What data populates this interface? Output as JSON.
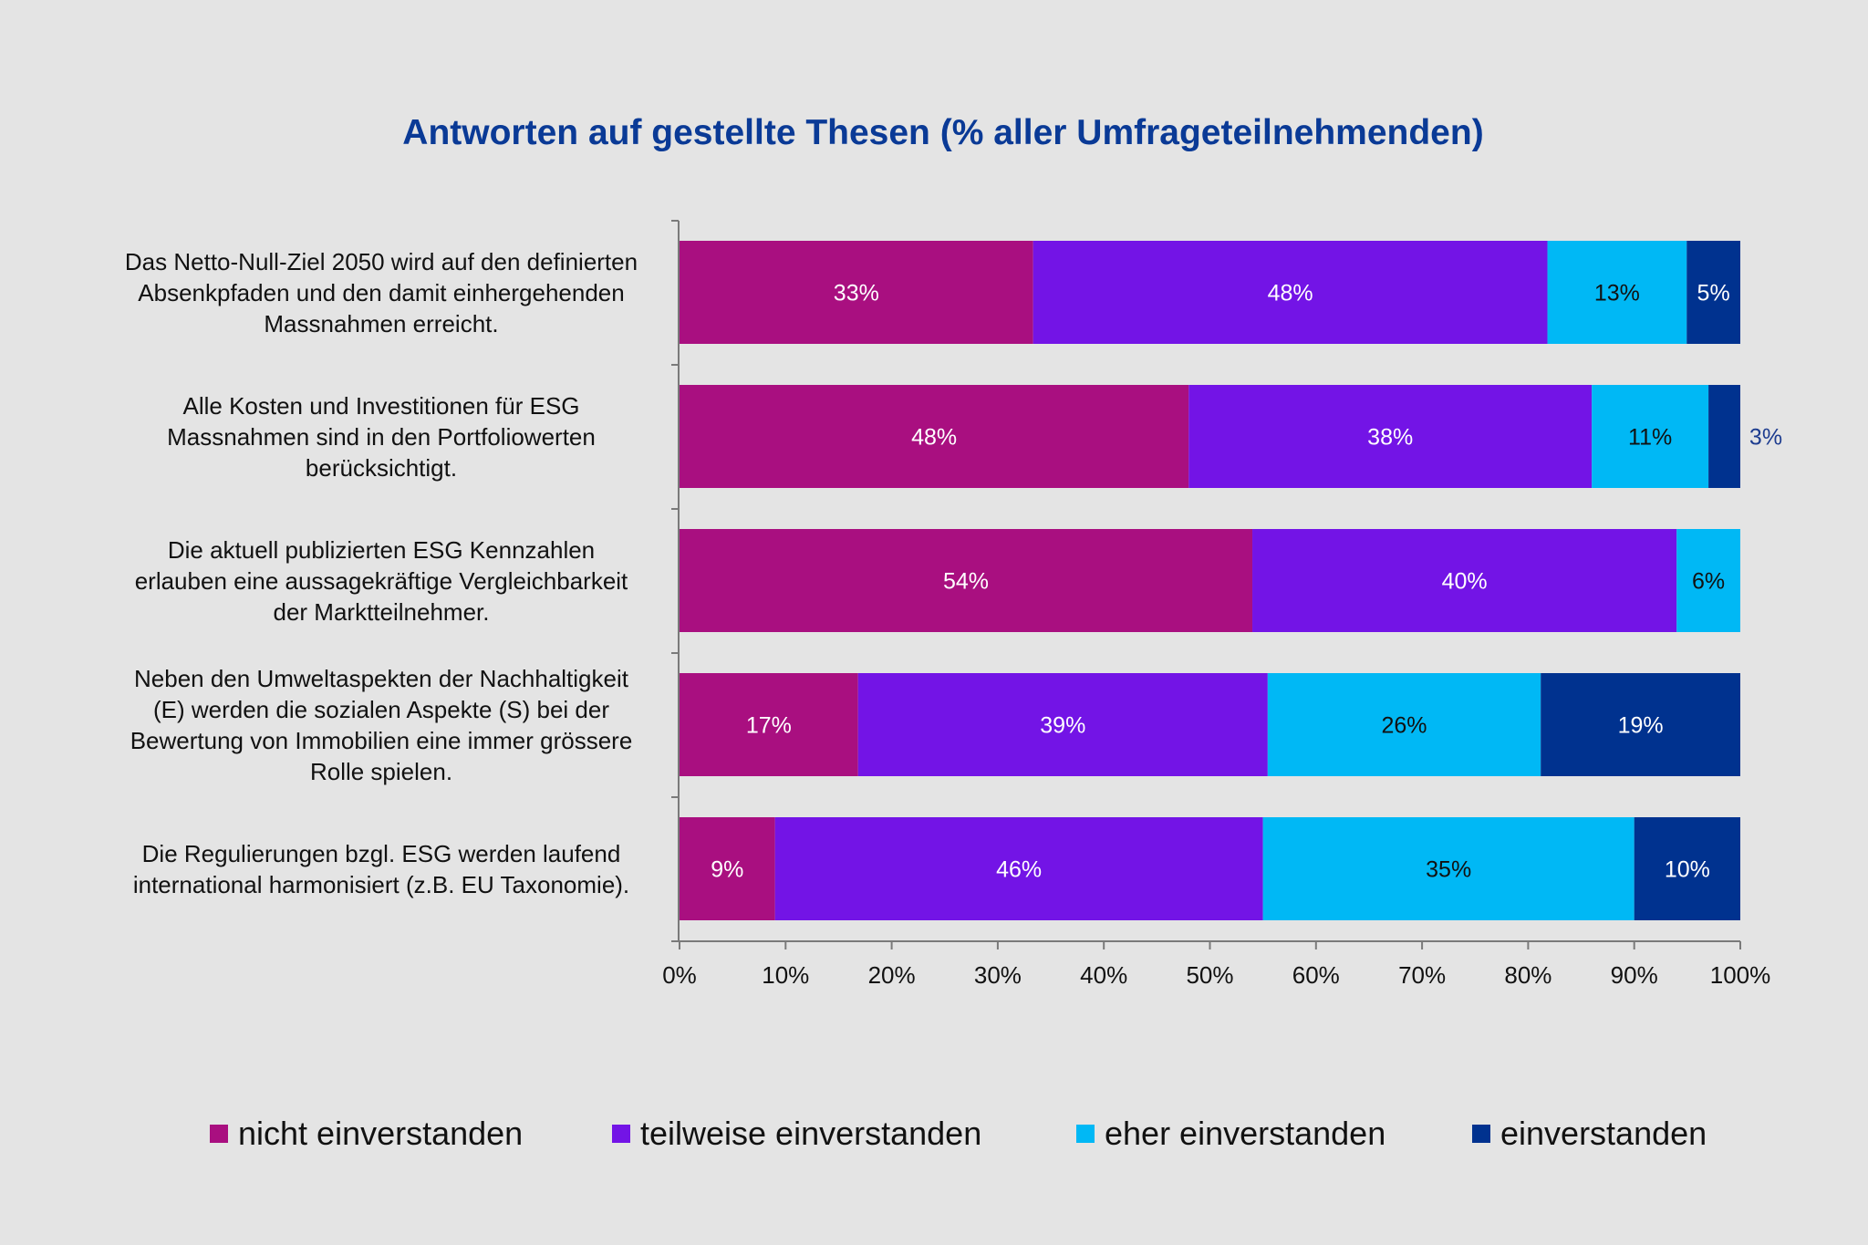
{
  "chart_data": {
    "type": "bar",
    "orientation": "horizontal",
    "stacked": true,
    "title": "Antworten auf gestellte Thesen (% aller Umfrageteilnehmenden)",
    "xlabel": "",
    "ylabel": "",
    "xlim": [
      0,
      100
    ],
    "x_ticks": [
      "0%",
      "10%",
      "20%",
      "30%",
      "40%",
      "50%",
      "60%",
      "70%",
      "80%",
      "90%",
      "100%"
    ],
    "grid": false,
    "legend_position": "bottom",
    "categories": [
      [
        "Das Netto-Null-Ziel 2050 wird auf den definierten",
        "Absenkpfaden und den damit einhergehenden",
        "Massnahmen erreicht."
      ],
      [
        "Alle Kosten und Investitionen für ESG",
        "Massnahmen sind in den Portfoliowerten",
        "berücksichtigt."
      ],
      [
        "Die aktuell publizierten ESG Kennzahlen",
        "erlauben eine aussagekräftige Vergleichbarkeit",
        "der Marktteilnehmer."
      ],
      [
        "Neben den Umweltaspekten der Nachhaltigkeit",
        "(E) werden die sozialen Aspekte (S) bei der",
        "Bewertung von Immobilien eine immer grössere",
        "Rolle spielen."
      ],
      [
        "Die Regulierungen bzgl. ESG werden laufend",
        "international harmonisiert (z.B. EU Taxonomie)."
      ]
    ],
    "series": [
      {
        "name": "nicht einverstanden",
        "color": "#a90f80",
        "label_color": "#ffffff",
        "values": [
          33,
          48,
          54,
          17,
          9
        ]
      },
      {
        "name": "teilweise einverstanden",
        "color": "#7314e6",
        "label_color": "#ffffff",
        "values": [
          48,
          38,
          40,
          39,
          46
        ]
      },
      {
        "name": "eher einverstanden",
        "color": "#00b8f5",
        "label_color": "#111111",
        "values": [
          13,
          11,
          6,
          26,
          35
        ]
      },
      {
        "name": "einverstanden",
        "color": "#00328f",
        "label_color": "#ffffff",
        "outside_label_color": "#1d3c8f",
        "values": [
          5,
          3,
          0,
          19,
          10
        ]
      }
    ],
    "data_labels": [
      [
        "33%",
        "48%",
        "13%",
        "5%"
      ],
      [
        "48%",
        "38%",
        "11%",
        "3%"
      ],
      [
        "54%",
        "40%",
        "6%",
        ""
      ],
      [
        "17%",
        "39%",
        "26%",
        "19%"
      ],
      [
        "9%",
        "46%",
        "35%",
        "10%"
      ]
    ]
  }
}
